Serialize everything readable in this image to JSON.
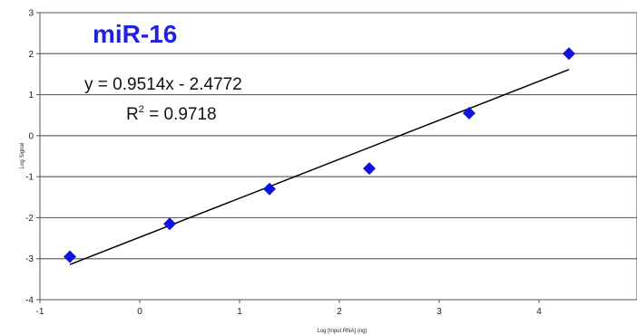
{
  "chart_data": {
    "type": "scatter",
    "title": "miR-16",
    "xlabel": "Log [Input RNA] (ng)",
    "ylabel": "Log Signal",
    "xlim": [
      -1,
      5
    ],
    "ylim": [
      -4,
      3
    ],
    "xticks": [
      "-1",
      "0",
      "1",
      "2",
      "3",
      "4"
    ],
    "yticks": [
      "3",
      "2",
      "1",
      "0",
      "-1",
      "-2",
      "-3",
      "-4"
    ],
    "grid": "horizontal",
    "series": [
      {
        "x": [
          -0.7,
          0.3,
          1.3,
          2.3,
          3.3,
          4.3
        ],
        "y": [
          -2.95,
          -2.15,
          -1.3,
          -0.8,
          0.55,
          2.0
        ],
        "color": "#1212dd",
        "marker": "diamond"
      }
    ],
    "trendline": {
      "slope": 0.9514,
      "intercept": -2.4772,
      "x_range": [
        -0.7,
        4.3
      ],
      "color": "#000000"
    },
    "annotations": {
      "equation": "y = 0.9514x - 2.4772",
      "r2_prefix": "R",
      "r2_sup": "2",
      "r2_suffix": " = 0.9718"
    }
  }
}
